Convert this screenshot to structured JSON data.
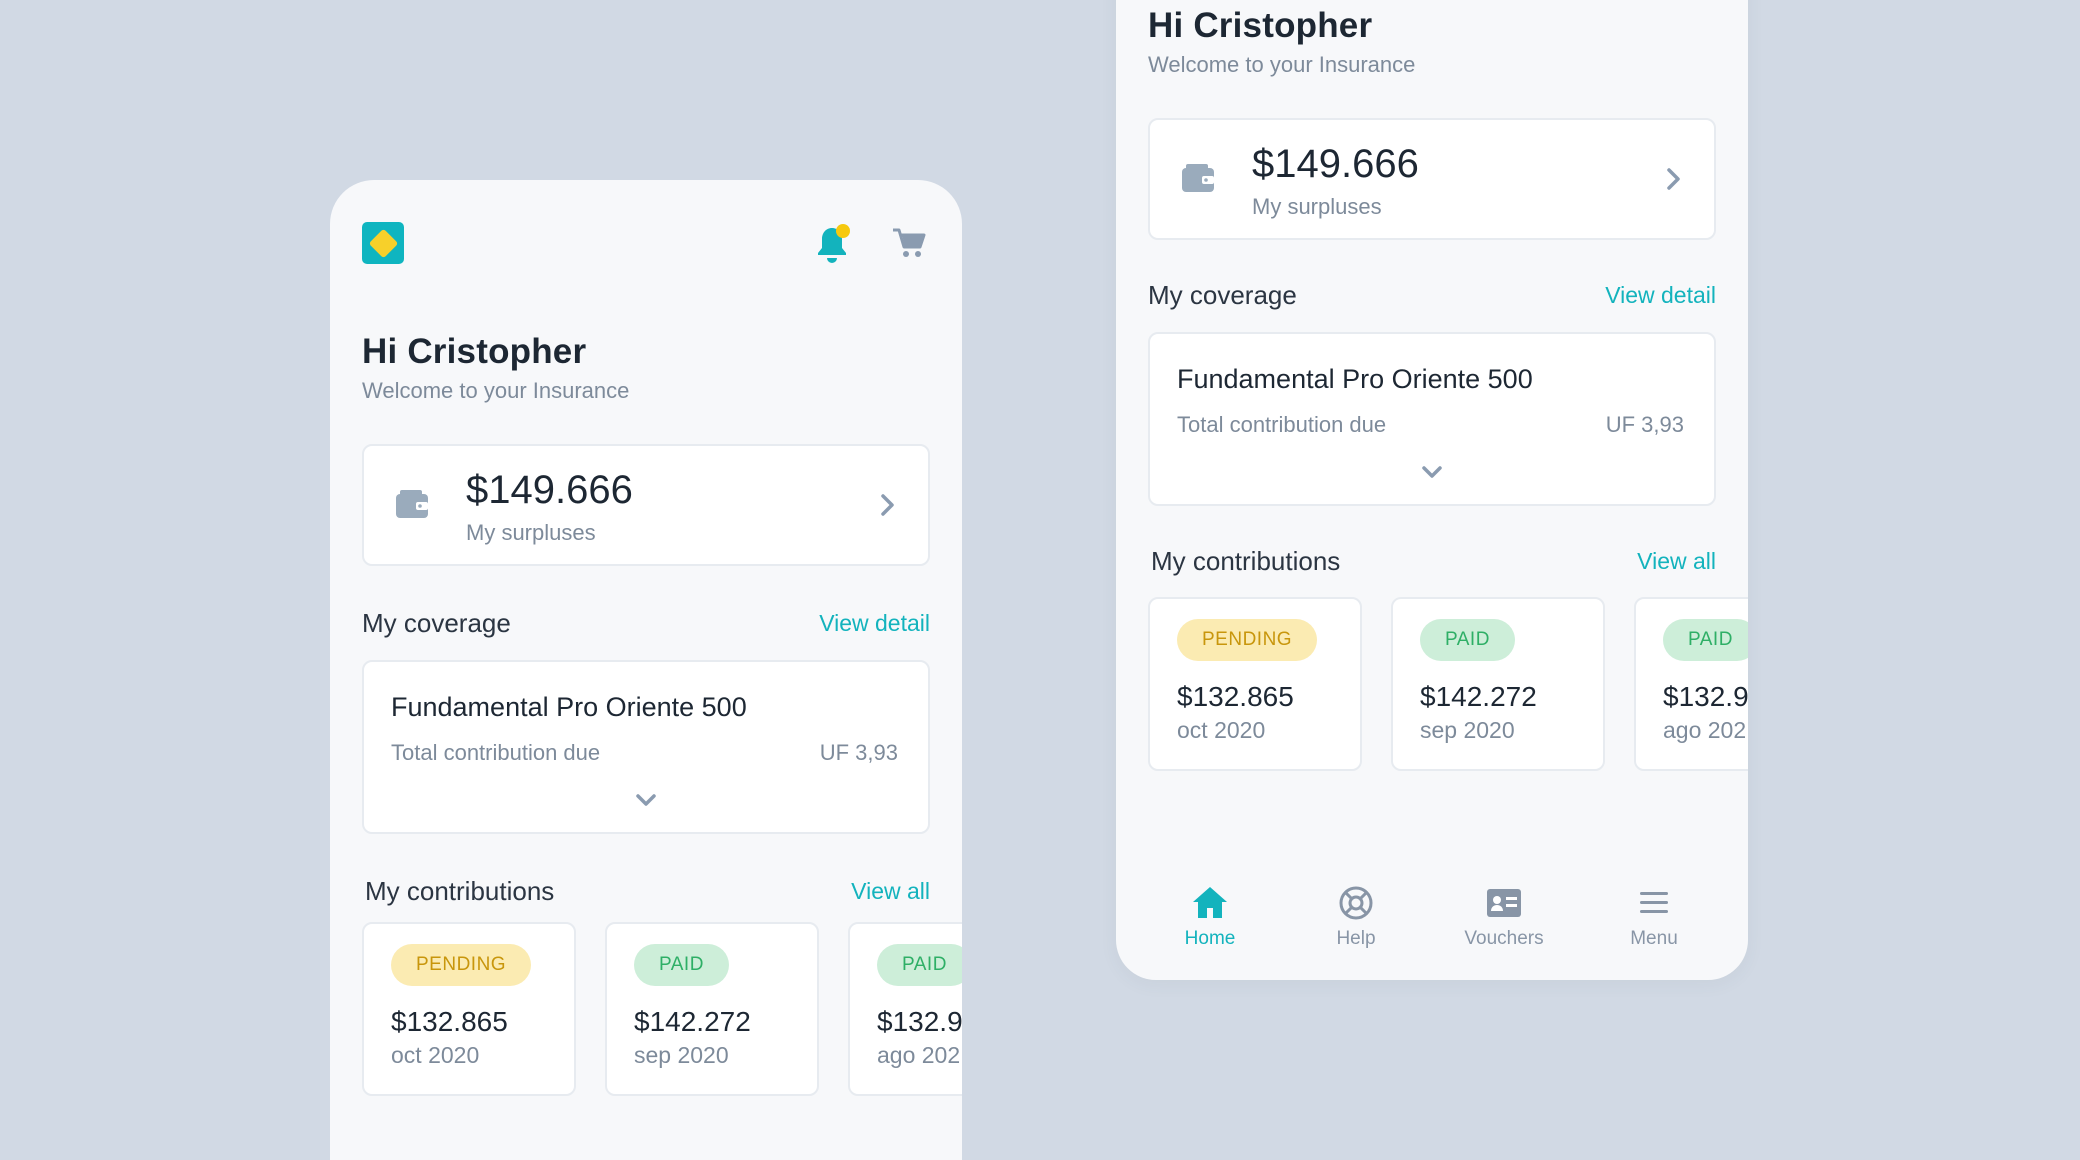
{
  "greeting": {
    "title": "Hi Cristopher",
    "subtitle": "Welcome to your Insurance"
  },
  "surplus": {
    "amount": "$149.666",
    "label": "My surpluses",
    "icon": "wallet-icon"
  },
  "coverage": {
    "section_title": "My coverage",
    "link": "View detail",
    "plan_name": "Fundamental Pro Oriente 500",
    "due_label": "Total contribution due",
    "due_value": "UF 3,93"
  },
  "contributions": {
    "section_title": "My contributions",
    "link": "View all",
    "items": [
      {
        "status": "PENDING",
        "amount": "$132.865",
        "date": "oct 2020"
      },
      {
        "status": "PAID",
        "amount": "$142.272",
        "date": "sep 2020"
      },
      {
        "status": "PAID",
        "amount": "$132.9",
        "date": "ago 202"
      }
    ]
  },
  "nav": [
    {
      "label": "Home",
      "icon": "home-icon",
      "active": true
    },
    {
      "label": "Help",
      "icon": "lifebuoy-icon",
      "active": false
    },
    {
      "label": "Vouchers",
      "icon": "id-card-icon",
      "active": false
    },
    {
      "label": "Menu",
      "icon": "menu-icon",
      "active": false
    }
  ],
  "colors": {
    "background": "#d1d9e4",
    "accent": "#13b3bd",
    "logo_primary": "#0fb5c0",
    "logo_secondary": "#f7d02a",
    "pending_bg": "#fbebb2",
    "pending_text": "#c8960c",
    "paid_bg": "#cdeed9",
    "paid_text": "#2eaf66",
    "muted_text": "#7d8a9a",
    "icon_gray": "#9aabbc"
  }
}
